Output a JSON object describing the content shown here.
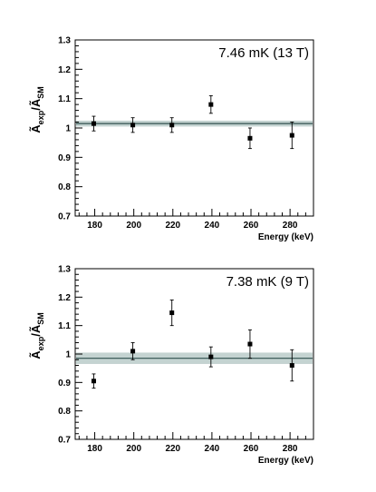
{
  "chart_data": [
    {
      "type": "scatter",
      "title": "",
      "annotation": "7.46 mK (13 T)",
      "xlabel": "Energy (keV)",
      "ylabel": {
        "main": "Ã",
        "sub1": "exp",
        "slash": "/Ã",
        "sub2": "SM"
      },
      "xlim": [
        170,
        292
      ],
      "ylim": [
        0.7,
        1.3
      ],
      "x_ticks": [
        180,
        200,
        220,
        240,
        260,
        280
      ],
      "y_ticks": [
        0.7,
        0.8,
        0.9,
        1,
        1.1,
        1.2,
        1.3
      ],
      "y_tick_labels": [
        "0.7",
        "0.8",
        "0.9",
        "1",
        "1.1",
        "1.2",
        "1.3"
      ],
      "fit_line": 1.015,
      "fit_band": [
        1.005,
        1.025
      ],
      "points": [
        {
          "x": 179.5,
          "y": 1.015,
          "err": 0.025
        },
        {
          "x": 199.5,
          "y": 1.01,
          "err": 0.025
        },
        {
          "x": 219.5,
          "y": 1.01,
          "err": 0.025
        },
        {
          "x": 239.5,
          "y": 1.08,
          "err": 0.03
        },
        {
          "x": 259.5,
          "y": 0.965,
          "err": 0.035
        },
        {
          "x": 281.0,
          "y": 0.975,
          "err": 0.045
        }
      ]
    },
    {
      "type": "scatter",
      "title": "",
      "annotation": "7.38 mK (9 T)",
      "xlabel": "Energy (keV)",
      "ylabel": {
        "main": "Ã",
        "sub1": "exp",
        "slash": "/Ã",
        "sub2": "SM"
      },
      "xlim": [
        170,
        292
      ],
      "ylim": [
        0.7,
        1.3
      ],
      "x_ticks": [
        180,
        200,
        220,
        240,
        260,
        280
      ],
      "y_ticks": [
        0.7,
        0.8,
        0.9,
        1,
        1.1,
        1.2,
        1.3
      ],
      "y_tick_labels": [
        "0.7",
        "0.8",
        "0.9",
        "1",
        "1.1",
        "1.2",
        "1.3"
      ],
      "fit_line": 0.985,
      "fit_band": [
        0.965,
        1.005
      ],
      "points": [
        {
          "x": 179.5,
          "y": 0.905,
          "err": 0.025
        },
        {
          "x": 199.5,
          "y": 1.01,
          "err": 0.03
        },
        {
          "x": 219.5,
          "y": 1.145,
          "err": 0.045
        },
        {
          "x": 239.5,
          "y": 0.99,
          "err": 0.035
        },
        {
          "x": 259.5,
          "y": 1.035,
          "err": 0.05
        },
        {
          "x": 281.0,
          "y": 0.96,
          "err": 0.055
        }
      ]
    }
  ],
  "colors": {
    "band": "#c4d3d1",
    "line": "#2f4f4d",
    "axis": "#000000",
    "marker": "#000000"
  }
}
